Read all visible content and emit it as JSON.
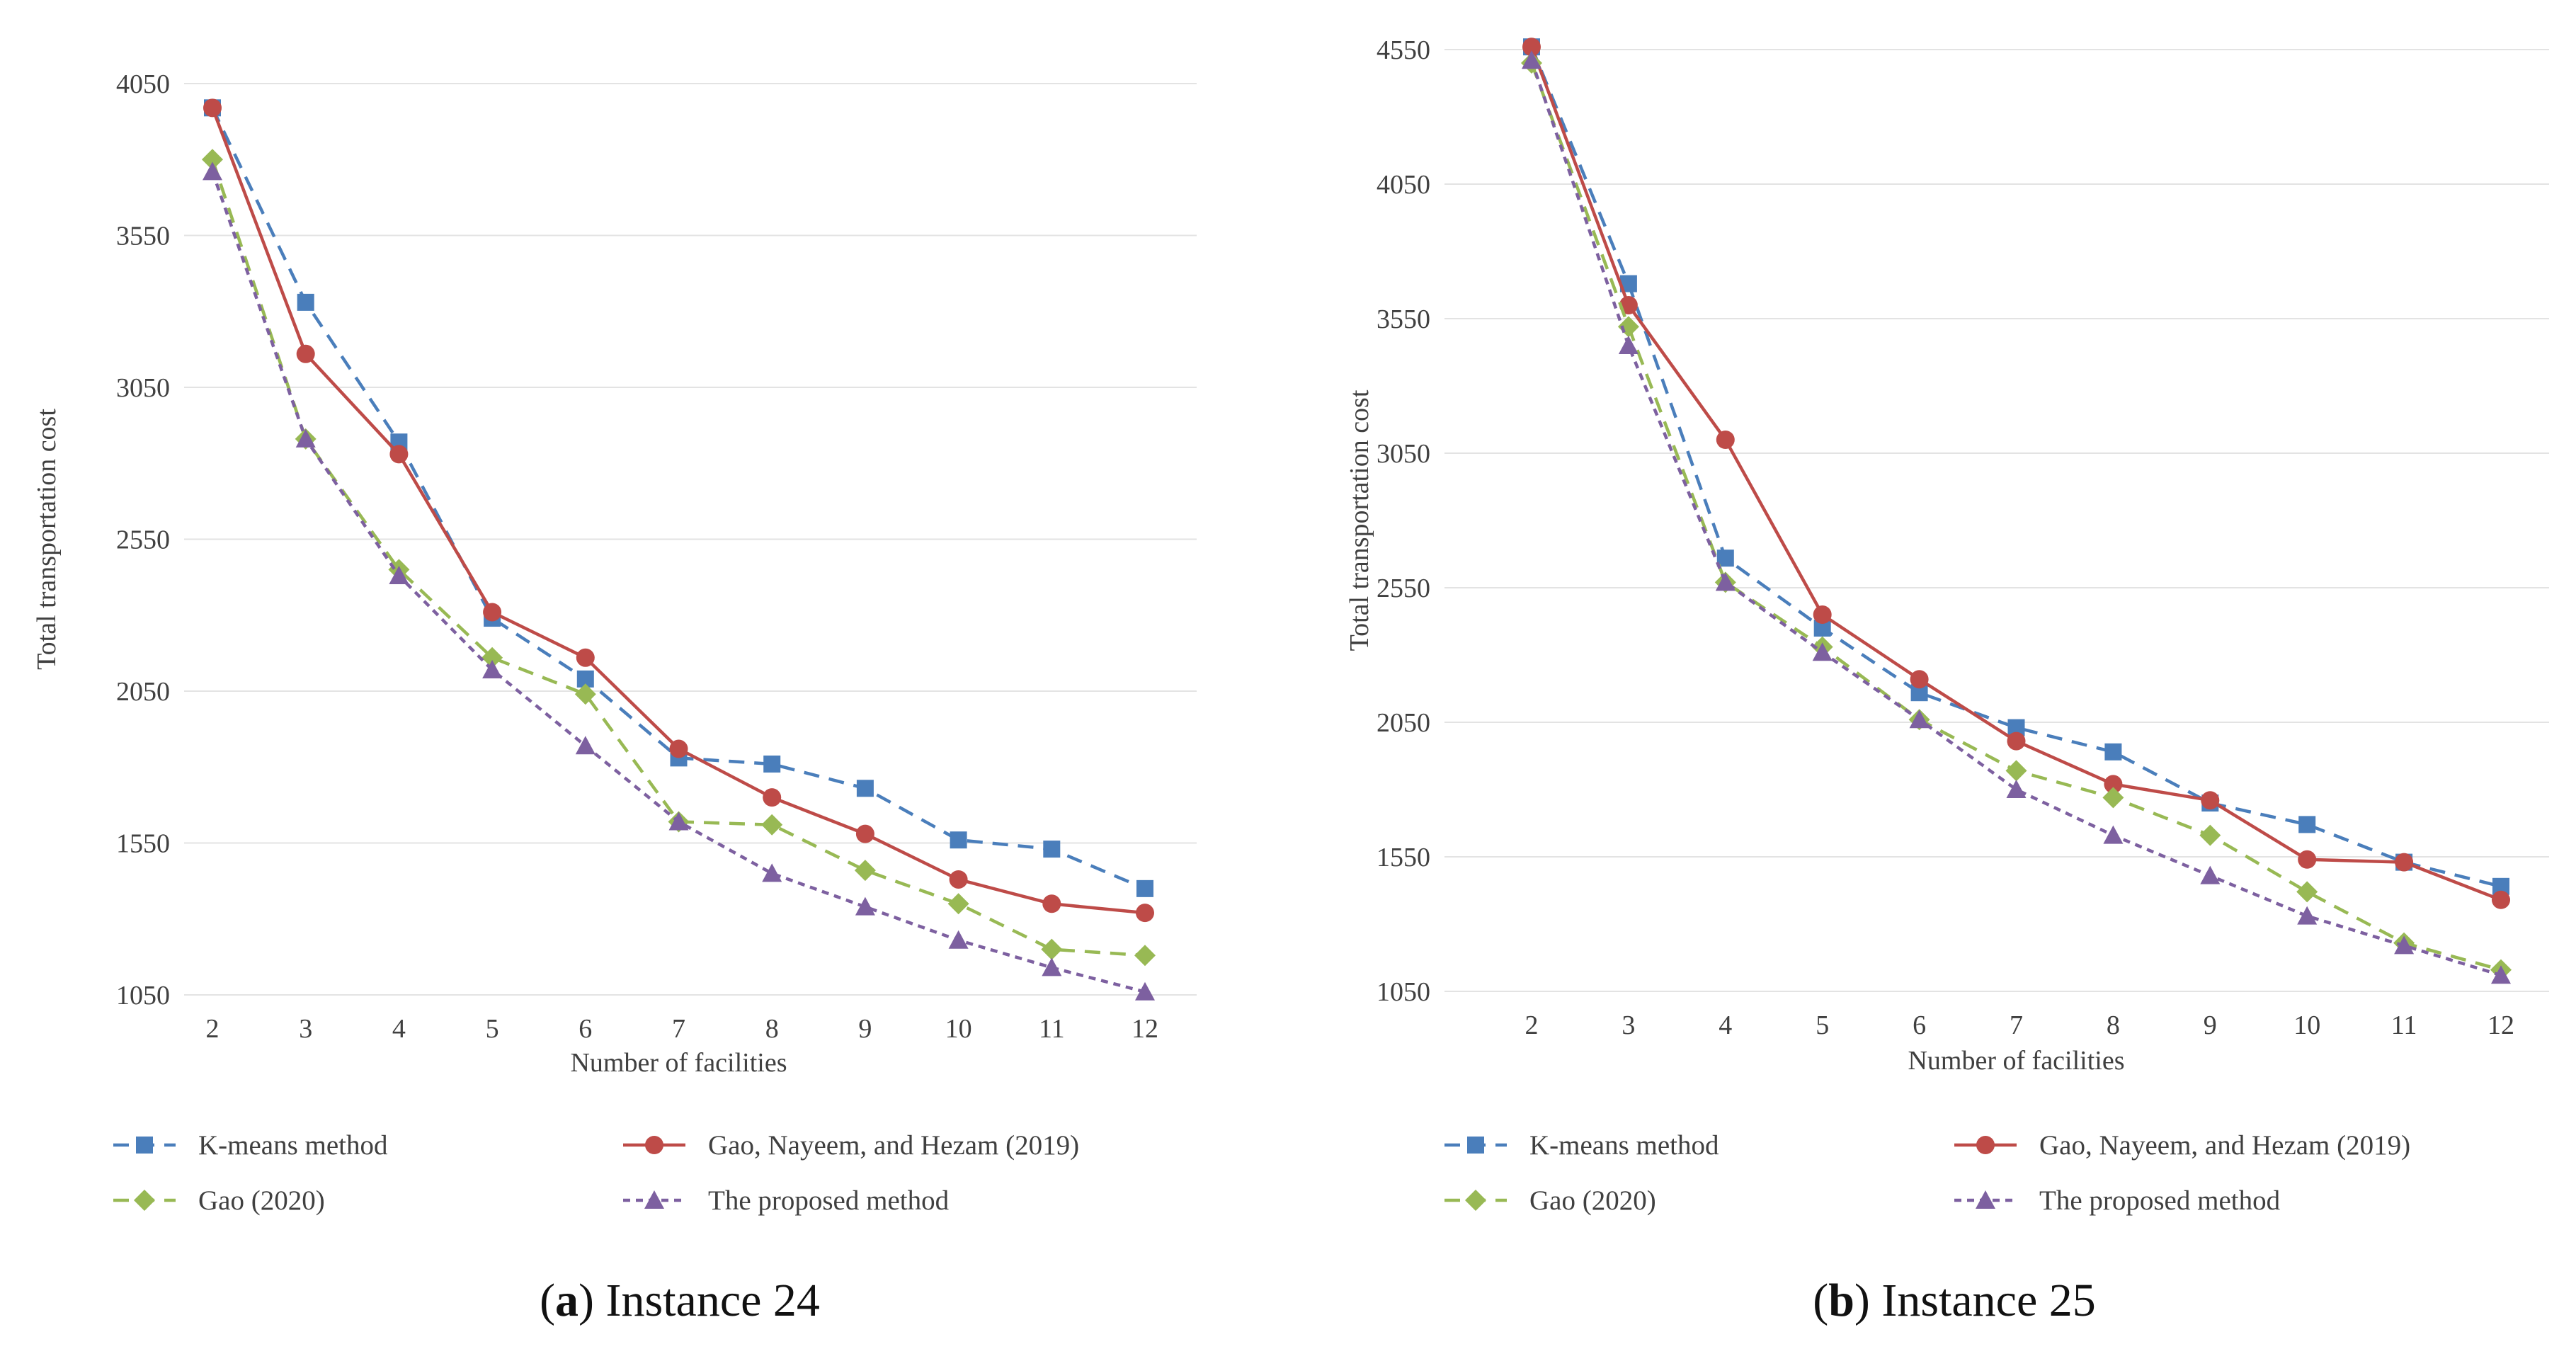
{
  "chart_data": [
    {
      "type": "line",
      "caption": {
        "letter": "a",
        "text": " Instance 24"
      },
      "xlabel": "Number of facilities",
      "ylabel": "Total transportation cost",
      "x": [
        2,
        3,
        4,
        5,
        6,
        7,
        8,
        9,
        10,
        11,
        12
      ],
      "ylim": [
        1050,
        4050
      ],
      "yticks": [
        1050,
        1550,
        2050,
        2550,
        3050,
        3550,
        4050
      ],
      "grid": true,
      "legend": "bottom",
      "series": [
        {
          "name": "K-means method",
          "color": "#4a7ebb",
          "dash": "long",
          "marker": "square",
          "values": [
            3970,
            3330,
            2870,
            2290,
            2090,
            1830,
            1810,
            1730,
            1560,
            1530,
            1400
          ]
        },
        {
          "name": "Gao, Nayeem, and Hezam (2019)",
          "color": "#be4b48",
          "dash": "solid",
          "marker": "circle",
          "values": [
            3970,
            3160,
            2830,
            2310,
            2160,
            1860,
            1700,
            1580,
            1430,
            1350,
            1320
          ]
        },
        {
          "name": "Gao (2020)",
          "color": "#98b954",
          "dash": "long",
          "marker": "diamond",
          "values": [
            3800,
            2880,
            2450,
            2160,
            2040,
            1620,
            1610,
            1460,
            1350,
            1200,
            1180
          ]
        },
        {
          "name": "The proposed method",
          "color": "#7d60a0",
          "dash": "short",
          "marker": "triangle",
          "values": [
            3760,
            2880,
            2430,
            2120,
            1870,
            1620,
            1450,
            1340,
            1230,
            1140,
            1060
          ]
        }
      ]
    },
    {
      "type": "line",
      "caption": {
        "letter": "b",
        "text": " Instance 25"
      },
      "xlabel": "Number of facilities",
      "ylabel": "Total transportation cost",
      "x": [
        2,
        3,
        4,
        5,
        6,
        7,
        8,
        9,
        10,
        11,
        12
      ],
      "ylim": [
        1050,
        4550
      ],
      "yticks": [
        1050,
        1550,
        2050,
        2550,
        3050,
        3550,
        4050,
        4550
      ],
      "grid": true,
      "legend": "bottom",
      "series": [
        {
          "name": "K-means method",
          "color": "#4a7ebb",
          "dash": "long",
          "marker": "square",
          "values": [
            4560,
            3680,
            2660,
            2400,
            2160,
            2030,
            1940,
            1750,
            1670,
            1530,
            1440
          ]
        },
        {
          "name": "Gao, Nayeem, and Hezam (2019)",
          "color": "#be4b48",
          "dash": "solid",
          "marker": "circle",
          "values": [
            4560,
            3600,
            3100,
            2450,
            2210,
            1980,
            1820,
            1760,
            1540,
            1530,
            1390
          ]
        },
        {
          "name": "Gao (2020)",
          "color": "#98b954",
          "dash": "long",
          "marker": "diamond",
          "values": [
            4500,
            3520,
            2570,
            2330,
            2060,
            1870,
            1770,
            1630,
            1420,
            1230,
            1130
          ]
        },
        {
          "name": "The proposed method",
          "color": "#7d60a0",
          "dash": "short",
          "marker": "triangle",
          "values": [
            4510,
            3450,
            2570,
            2310,
            2060,
            1800,
            1630,
            1480,
            1330,
            1220,
            1110
          ]
        }
      ]
    }
  ]
}
